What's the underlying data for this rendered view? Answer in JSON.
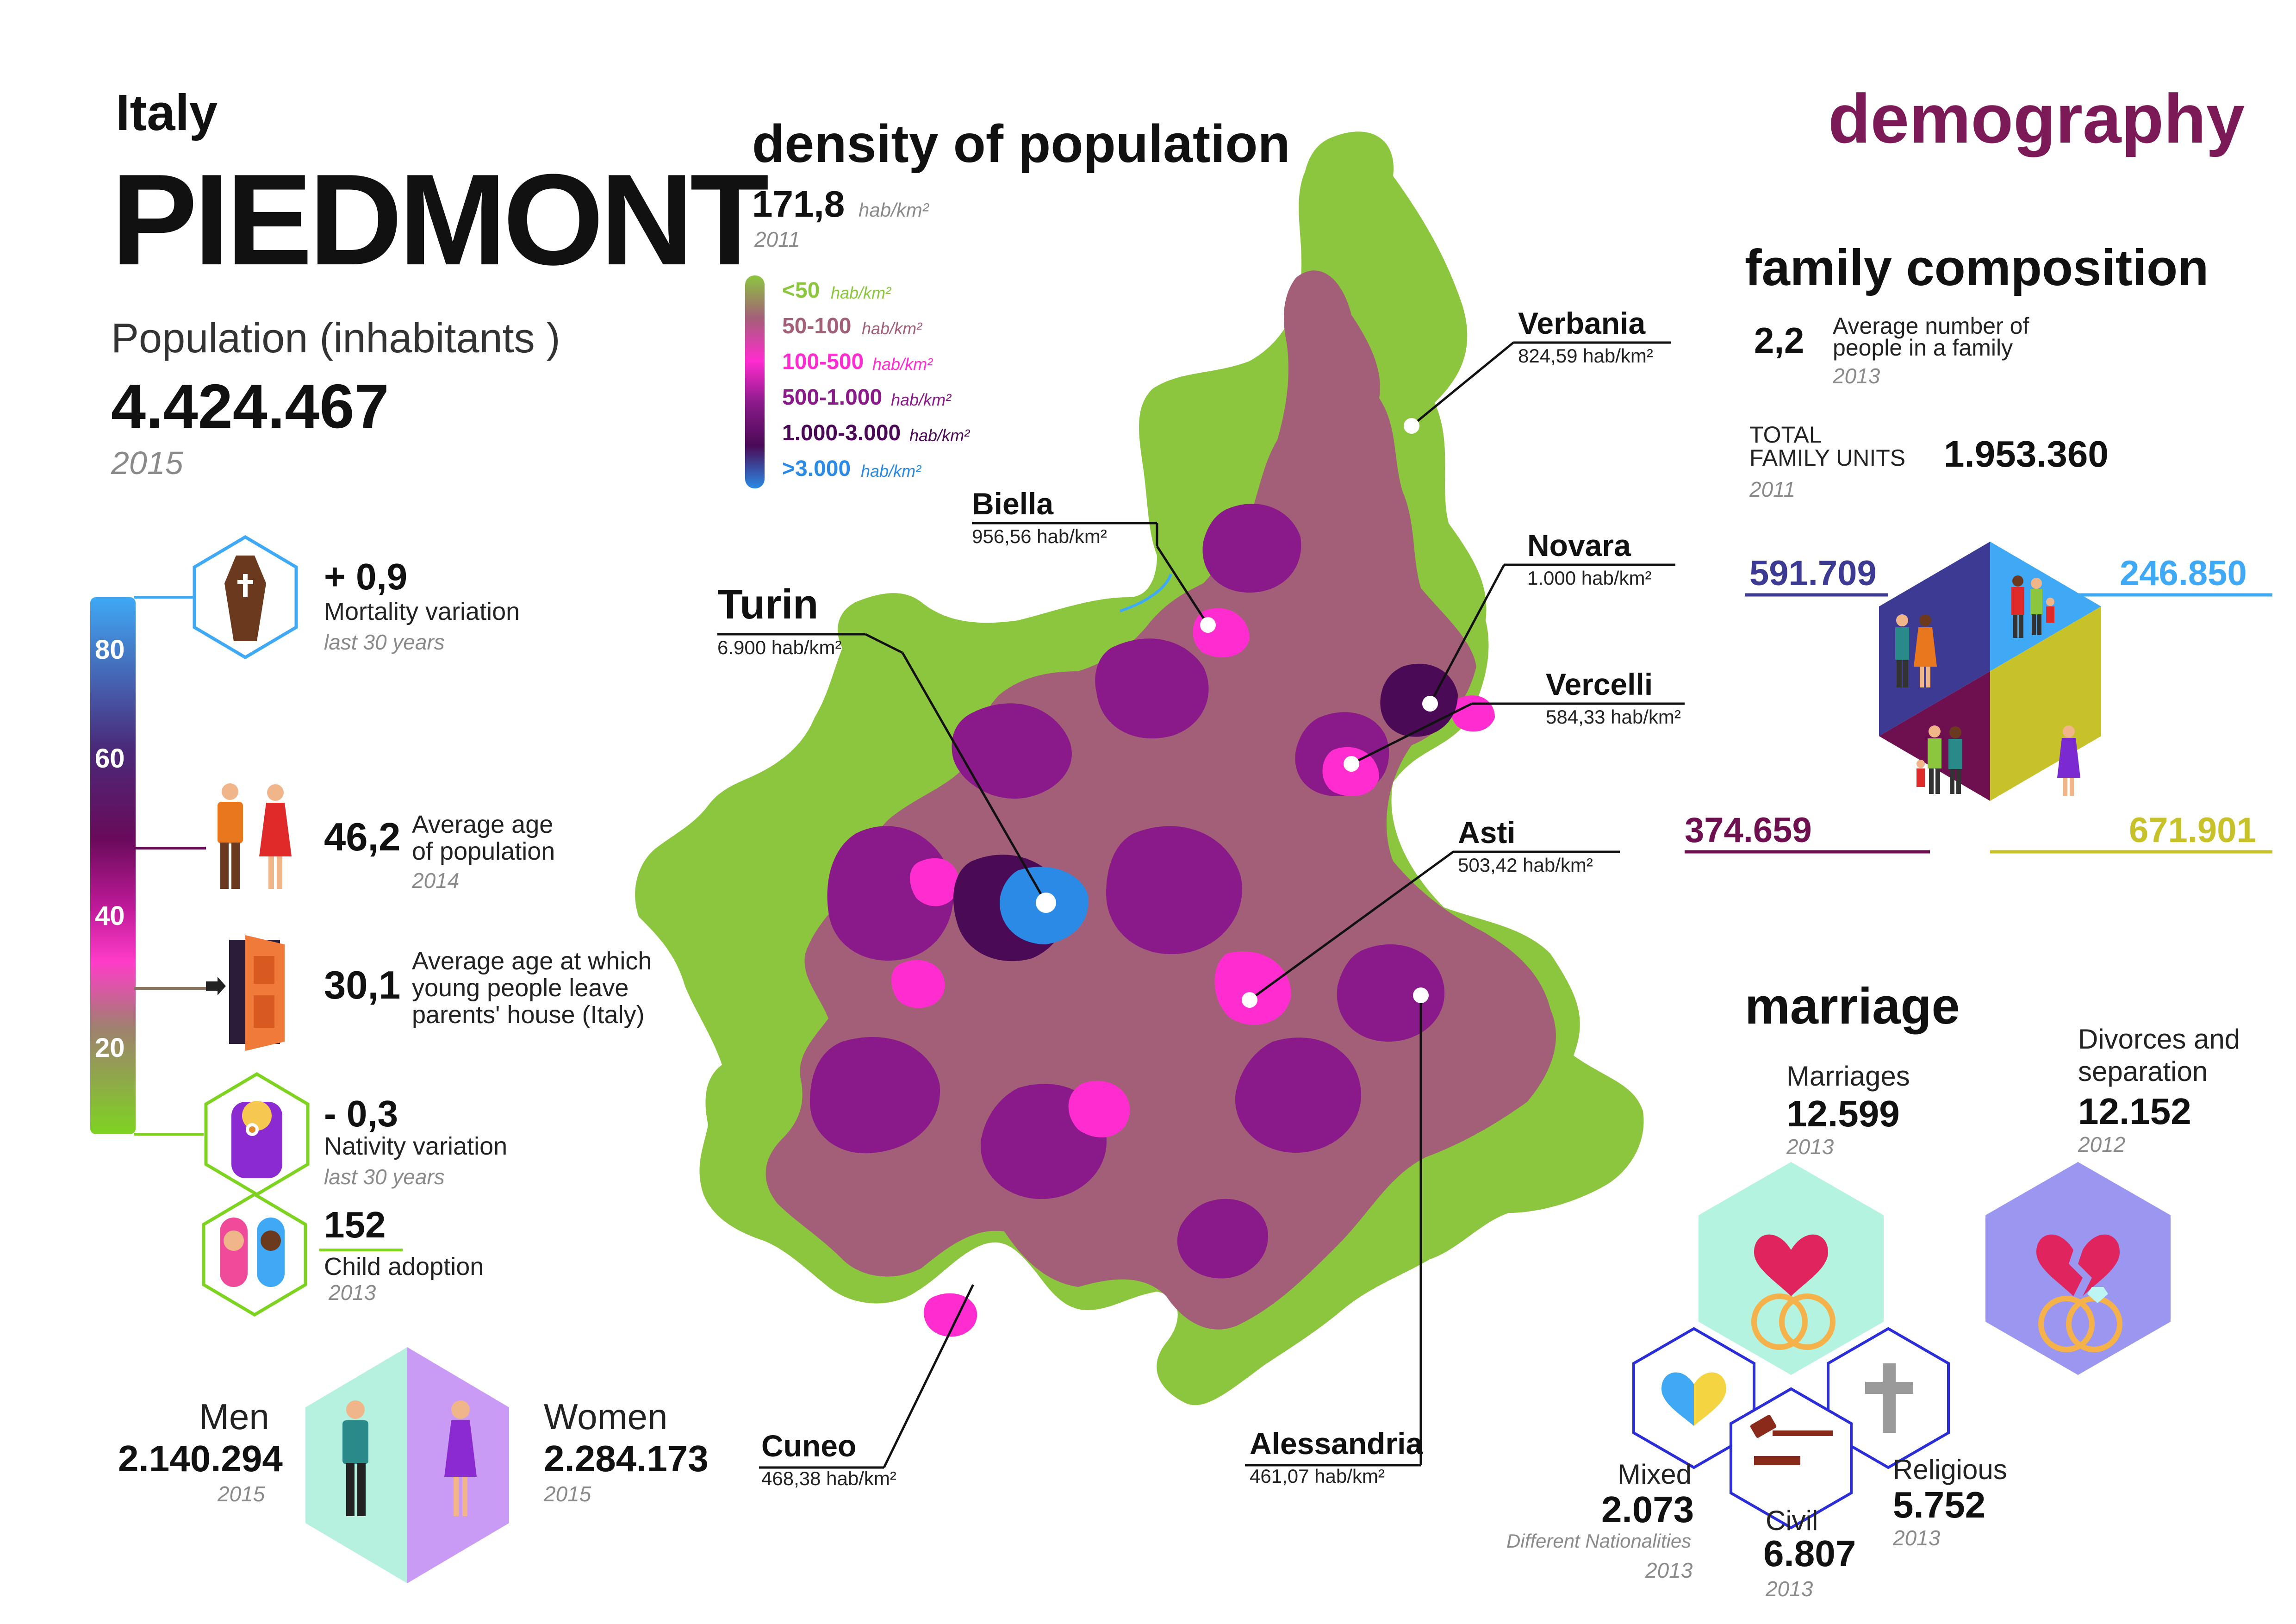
{
  "header": {
    "country": "Italy",
    "region": "PIEDMONT",
    "population_label": "Population (inhabitants )",
    "population_value": "4.424.467",
    "population_year": "2015",
    "section_title": "demography"
  },
  "age_scale": {
    "ticks": [
      "80",
      "60",
      "40",
      "20"
    ],
    "colors": [
      "#3fa9f5",
      "#4a2a7a",
      "#6a0a5a",
      "#b0208a",
      "#ff3cc8",
      "#9a7a6a",
      "#8ccc3a",
      "#7ed321"
    ]
  },
  "left_stats": {
    "mortality": {
      "value": "+ 0,9",
      "label": "Mortality variation",
      "note": "last 30 years",
      "icon": "coffin-icon"
    },
    "avg_age": {
      "value": "46,2",
      "label_1": "Average age",
      "label_2": "of population",
      "year": "2014",
      "icon": "couple-icon"
    },
    "leave_home": {
      "value": "30,1",
      "label_1": "Average age at which",
      "label_2": "young people leave",
      "label_3": "parents' house (Italy)",
      "icon": "door-icon"
    },
    "nativity": {
      "value": "- 0,3",
      "label": "Nativity variation",
      "note": "last 30 years",
      "icon": "baby-icon"
    },
    "adoption": {
      "value": "152",
      "label": "Child adoption",
      "year": "2013",
      "icon": "children-icon"
    }
  },
  "gender": {
    "men_label": "Men",
    "men_value": "2.140.294",
    "men_year": "2015",
    "women_label": "Women",
    "women_value": "2.284.173",
    "women_year": "2015"
  },
  "density": {
    "title": "density of population",
    "value": "171,8",
    "unit": "hab/km²",
    "year": "2011",
    "legend": [
      {
        "range": "<50",
        "unit": "hab/km²",
        "color": "#8cc63f"
      },
      {
        "range": "50-100",
        "unit": "hab/km²",
        "color": "#a45f78"
      },
      {
        "range": "100-500",
        "unit": "hab/km²",
        "color": "#ff2ccf"
      },
      {
        "range": "500-1.000",
        "unit": "hab/km²",
        "color": "#8a1a8a"
      },
      {
        "range": "1.000-3.000",
        "unit": "hab/km²",
        "color": "#4a0a55"
      },
      {
        "range": ">3.000",
        "unit": "hab/km²",
        "color": "#2a8ae5"
      }
    ]
  },
  "cities": {
    "verbania": {
      "name": "Verbania",
      "density": "824,59 hab/km²"
    },
    "biella": {
      "name": "Biella",
      "density": "956,56 hab/km²"
    },
    "novara": {
      "name": "Novara",
      "density": "1.000 hab/km²"
    },
    "turin": {
      "name": "Turin",
      "density": "6.900 hab/km²"
    },
    "vercelli": {
      "name": "Vercelli",
      "density": "584,33 hab/km²"
    },
    "asti": {
      "name": "Asti",
      "density": "503,42 hab/km²"
    },
    "cuneo": {
      "name": "Cuneo",
      "density": "468,38 hab/km²"
    },
    "alessandria": {
      "name": "Alessandria",
      "density": "461,07 hab/km²"
    }
  },
  "family": {
    "title": "family composition",
    "avg_value": "2,2",
    "avg_label_1": "Average number of",
    "avg_label_2": "people in a family",
    "avg_year": "2013",
    "total_label_1": "TOTAL",
    "total_label_2": "FAMILY UNITS",
    "total_value": "1.953.360",
    "total_year": "2011",
    "segments": [
      {
        "value": "591.709",
        "color": "#3d3a94"
      },
      {
        "value": "246.850",
        "color": "#3fa9f5"
      },
      {
        "value": "374.659",
        "color": "#6e0f4f"
      },
      {
        "value": "671.901",
        "color": "#c8c22a"
      }
    ]
  },
  "marriage": {
    "title": "marriage",
    "marriages_label": "Marriages",
    "marriages_value": "12.599",
    "marriages_year": "2013",
    "divorces_label_1": "Divorces and",
    "divorces_label_2": "separation",
    "divorces_value": "12.152",
    "divorces_year": "2012",
    "mixed_label": "Mixed",
    "mixed_value": "2.073",
    "mixed_note": "Different Nationalities",
    "mixed_year": "2013",
    "civil_label": "Civil",
    "civil_value": "6.807",
    "civil_year": "2013",
    "religious_label": "Religious",
    "religious_value": "5.752",
    "religious_year": "2013"
  }
}
